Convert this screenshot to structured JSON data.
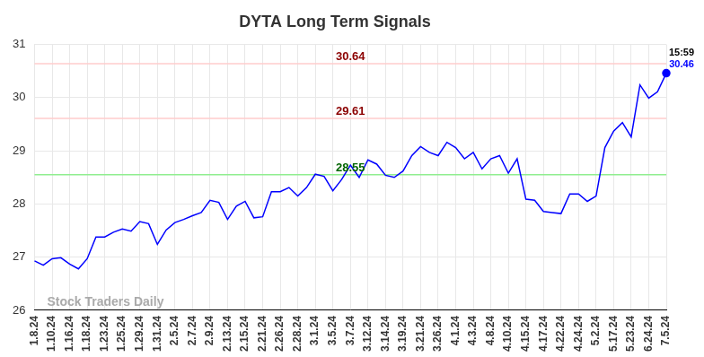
{
  "chart_data": {
    "type": "line",
    "title": "DYTA Long Term Signals",
    "categories": [
      "1.8.24",
      null,
      "1.10.24",
      null,
      "1.16.24",
      null,
      "1.18.24",
      null,
      "1.23.24",
      null,
      "1.25.24",
      null,
      "1.29.24",
      null,
      "1.31.24",
      null,
      "2.5.24",
      null,
      "2.7.24",
      null,
      "2.9.24",
      null,
      "2.13.24",
      null,
      "2.15.24",
      null,
      "2.21.24",
      null,
      "2.26.24",
      null,
      "2.28.24",
      null,
      "3.1.24",
      null,
      "3.5.24",
      null,
      "3.7.24",
      null,
      "3.12.24",
      null,
      "3.14.24",
      null,
      "3.19.24",
      null,
      "3.21.24",
      null,
      "3.26.24",
      null,
      "4.1.24",
      null,
      "4.3.24",
      null,
      "4.8.24",
      null,
      "4.10.24",
      null,
      "4.15.24",
      null,
      "4.17.24",
      null,
      "4.22.24",
      null,
      "4.24.24",
      null,
      "5.2.24",
      null,
      "5.17.24",
      null,
      "5.23.24",
      null,
      "6.24.24",
      null,
      "7.5.24"
    ],
    "values": [
      26.93,
      26.85,
      26.97,
      26.99,
      26.87,
      26.78,
      26.97,
      27.38,
      27.38,
      27.47,
      27.53,
      27.49,
      27.67,
      27.63,
      27.24,
      27.51,
      27.65,
      27.71,
      27.78,
      27.84,
      28.07,
      28.03,
      27.71,
      27.96,
      28.05,
      27.74,
      27.76,
      28.23,
      28.23,
      28.31,
      28.15,
      28.31,
      28.56,
      28.52,
      28.25,
      28.46,
      28.73,
      28.5,
      28.83,
      28.75,
      28.54,
      28.5,
      28.62,
      28.91,
      29.08,
      28.97,
      28.91,
      29.16,
      29.06,
      28.85,
      28.97,
      28.66,
      28.85,
      28.91,
      28.58,
      28.85,
      28.09,
      28.07,
      27.86,
      27.84,
      27.82,
      28.19,
      28.19,
      28.05,
      28.15,
      29.06,
      29.37,
      29.53,
      29.26,
      30.24,
      29.99,
      30.11,
      30.46
    ],
    "color": "#0000ff",
    "marker": "last",
    "ylim": [
      26,
      31
    ],
    "yticks": [
      26,
      27,
      28,
      29,
      30,
      31
    ],
    "grid": true,
    "reference_lines": [
      {
        "value": 30.64,
        "label": "30.64",
        "color": "#ffcccc"
      },
      {
        "value": 29.61,
        "label": "29.61",
        "color": "#ffcccc"
      },
      {
        "value": 28.55,
        "label": "28.55",
        "color": "#90ee90"
      }
    ],
    "annotations": [
      {
        "text": "15:59"
      },
      {
        "text": "30.46"
      }
    ],
    "watermark": "Stock Traders Daily"
  }
}
